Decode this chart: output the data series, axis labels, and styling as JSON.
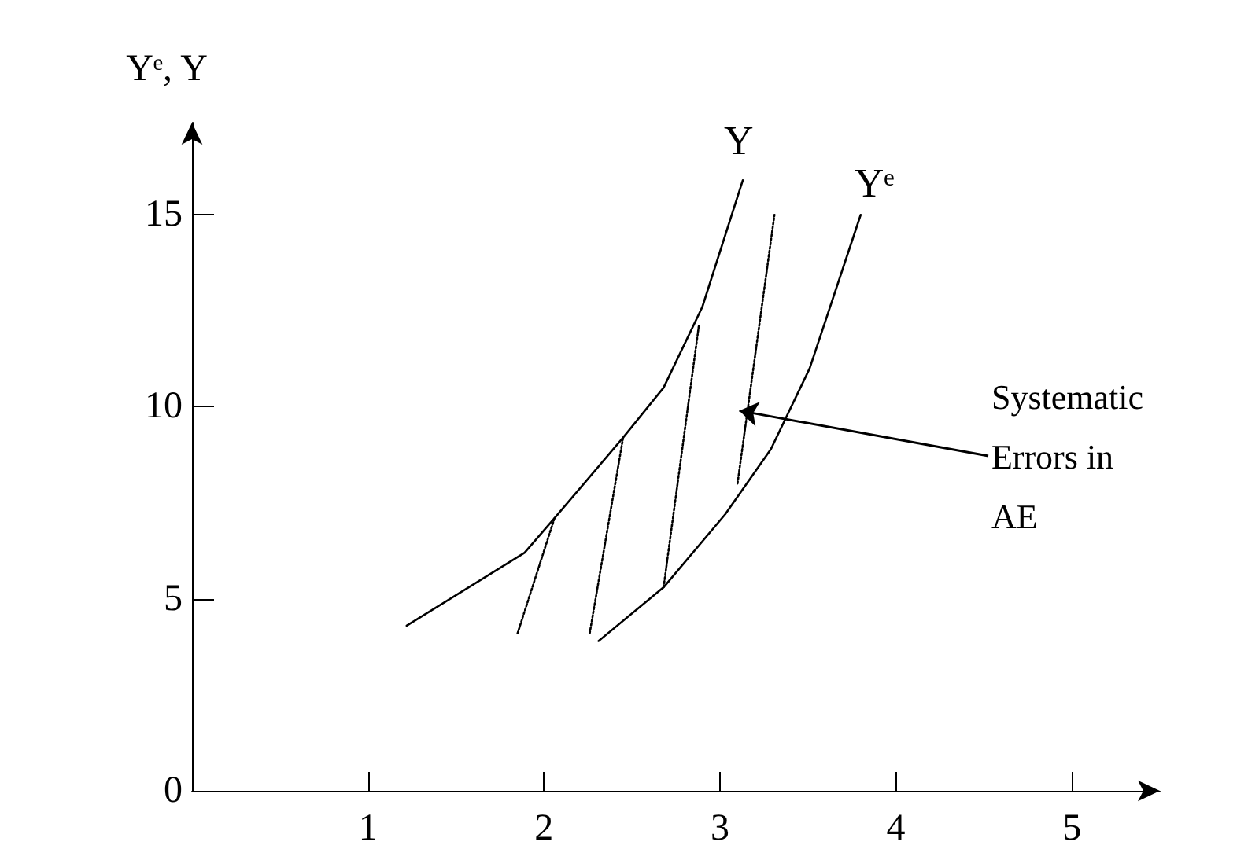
{
  "chart_data": {
    "type": "line",
    "ylabel": "Yᵉ, Y",
    "xlim": [
      0,
      5.5
    ],
    "ylim": [
      0,
      17.4
    ],
    "xticks": [
      1,
      2,
      3,
      4,
      5
    ],
    "yticks": [
      0,
      5,
      10,
      15
    ],
    "grid": false,
    "legend": false,
    "marker": "none",
    "line_style": "solid",
    "series": [
      {
        "name": "Y",
        "color": "#000000",
        "x": [
          1.22,
          1.89,
          2.06,
          2.45,
          2.68,
          2.9,
          3.13
        ],
        "values": [
          4.3,
          6.2,
          7.1,
          9.2,
          10.5,
          12.6,
          15.9
        ]
      },
      {
        "name": "Yᵉ",
        "color": "#000000",
        "x": [
          2.31,
          2.68,
          3.03,
          3.29,
          3.51,
          3.8
        ],
        "values": [
          3.9,
          5.3,
          7.2,
          8.9,
          11.0,
          15.0
        ]
      },
      {
        "color": "#000000",
        "line_style": "dotted",
        "x": [
          1.85,
          2.06
        ],
        "values": [
          4.1,
          7.1
        ]
      },
      {
        "color": "#000000",
        "line_style": "dotted",
        "x": [
          2.26,
          2.45
        ],
        "values": [
          4.1,
          9.2
        ]
      },
      {
        "color": "#000000",
        "line_style": "dotted",
        "x": [
          2.68,
          2.88
        ],
        "values": [
          5.3,
          12.1
        ]
      },
      {
        "color": "#000000",
        "line_style": "dotted",
        "x": [
          3.1,
          3.31
        ],
        "values": [
          8.0,
          15.0
        ]
      }
    ],
    "annotations": [
      {
        "text": "Systematic Errors in AE",
        "x": 3.11,
        "y": 9.9
      }
    ]
  }
}
